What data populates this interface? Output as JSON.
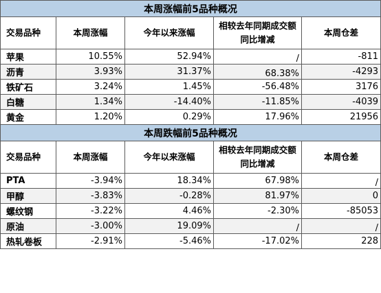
{
  "gainers": {
    "title": "本周涨幅前5品种概况",
    "headers": [
      "交易品种",
      "本周涨幅",
      "今年以来涨幅",
      "相较去年同期成交额同比增减",
      "本周仓差"
    ],
    "rows": [
      {
        "name": "苹果",
        "weekly": "10.55%",
        "ytd": "52.94%",
        "yoy": "/",
        "oi": "-811"
      },
      {
        "name": "沥青",
        "weekly": "3.93%",
        "ytd": "31.37%",
        "yoy": "68.38%",
        "oi": "-4293"
      },
      {
        "name": "铁矿石",
        "weekly": "3.24%",
        "ytd": "1.45%",
        "yoy": "-56.48%",
        "oi": "3176"
      },
      {
        "name": "白糖",
        "weekly": "1.34%",
        "ytd": "-14.40%",
        "yoy": "-11.85%",
        "oi": "-4039"
      },
      {
        "name": "黄金",
        "weekly": "1.20%",
        "ytd": "0.29%",
        "yoy": "17.96%",
        "oi": "21956"
      }
    ]
  },
  "losers": {
    "title": "本周跌幅前5品种概况",
    "headers": [
      "交易品种",
      "本周涨幅",
      "今年以来涨幅",
      "相较去年同期成交额同比增减",
      "本周仓差"
    ],
    "rows": [
      {
        "name": "PTA",
        "weekly": "-3.94%",
        "ytd": "18.34%",
        "yoy": "67.98%",
        "oi": "/"
      },
      {
        "name": "甲醇",
        "weekly": "-3.83%",
        "ytd": "-0.28%",
        "yoy": "81.97%",
        "oi": "0"
      },
      {
        "name": "螺纹钢",
        "weekly": "-3.22%",
        "ytd": "4.46%",
        "yoy": "-2.30%",
        "oi": "-85053"
      },
      {
        "name": "原油",
        "weekly": "-3.00%",
        "ytd": "19.09%",
        "yoy": "/",
        "oi": "/"
      },
      {
        "name": "热轧卷板",
        "weekly": "-2.91%",
        "ytd": "-5.46%",
        "yoy": "-17.02%",
        "oi": "228"
      }
    ]
  }
}
